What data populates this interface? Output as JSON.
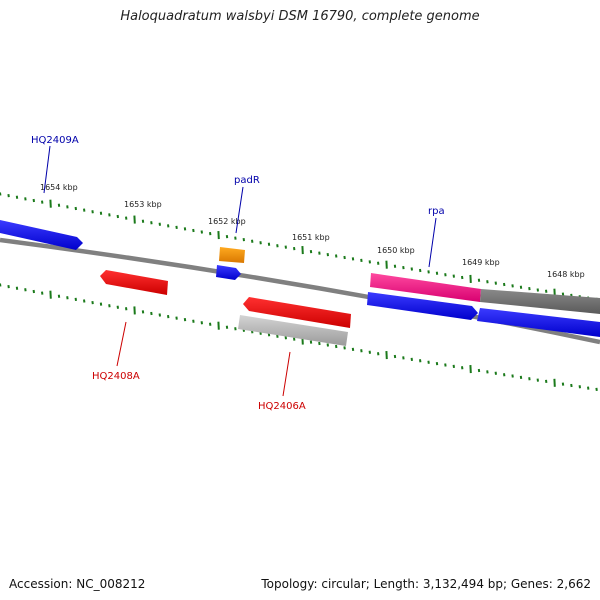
{
  "title": "Haloquadratum walsbyi DSM 16790, complete genome",
  "footer": {
    "accession": "Accession: NC_008212",
    "summary": "Topology: circular; Length: 3,132,494 bp; Genes: 2,662"
  },
  "scale": {
    "ticks": [
      "1654 kbp",
      "1653 kbp",
      "1652 kbp",
      "1651 kbp",
      "1650 kbp",
      "1649 kbp",
      "1648 kbp"
    ]
  },
  "genes": [
    {
      "name": "HQ2409A",
      "color": "#1a1aff",
      "strand": "+"
    },
    {
      "name": "padR",
      "color": "#1a1aff",
      "strand": "+"
    },
    {
      "name": "rpa",
      "color": "#1a1aff",
      "strand": "+"
    },
    {
      "name": "HQ2408A",
      "color": "#dd0000",
      "strand": "-"
    },
    {
      "name": "HQ2406A",
      "color": "#dd0000",
      "strand": "-"
    }
  ],
  "colors": {
    "backbone": "#808080",
    "forward_cds": "#0000ee",
    "reverse_cds": "#ee0000",
    "orf_orange": "#f09000",
    "orf_pink": "#ff2d8a",
    "gray_feature": "#777777",
    "light_gray_feature": "#b8b8b8",
    "tick": "#1b7a1b"
  }
}
